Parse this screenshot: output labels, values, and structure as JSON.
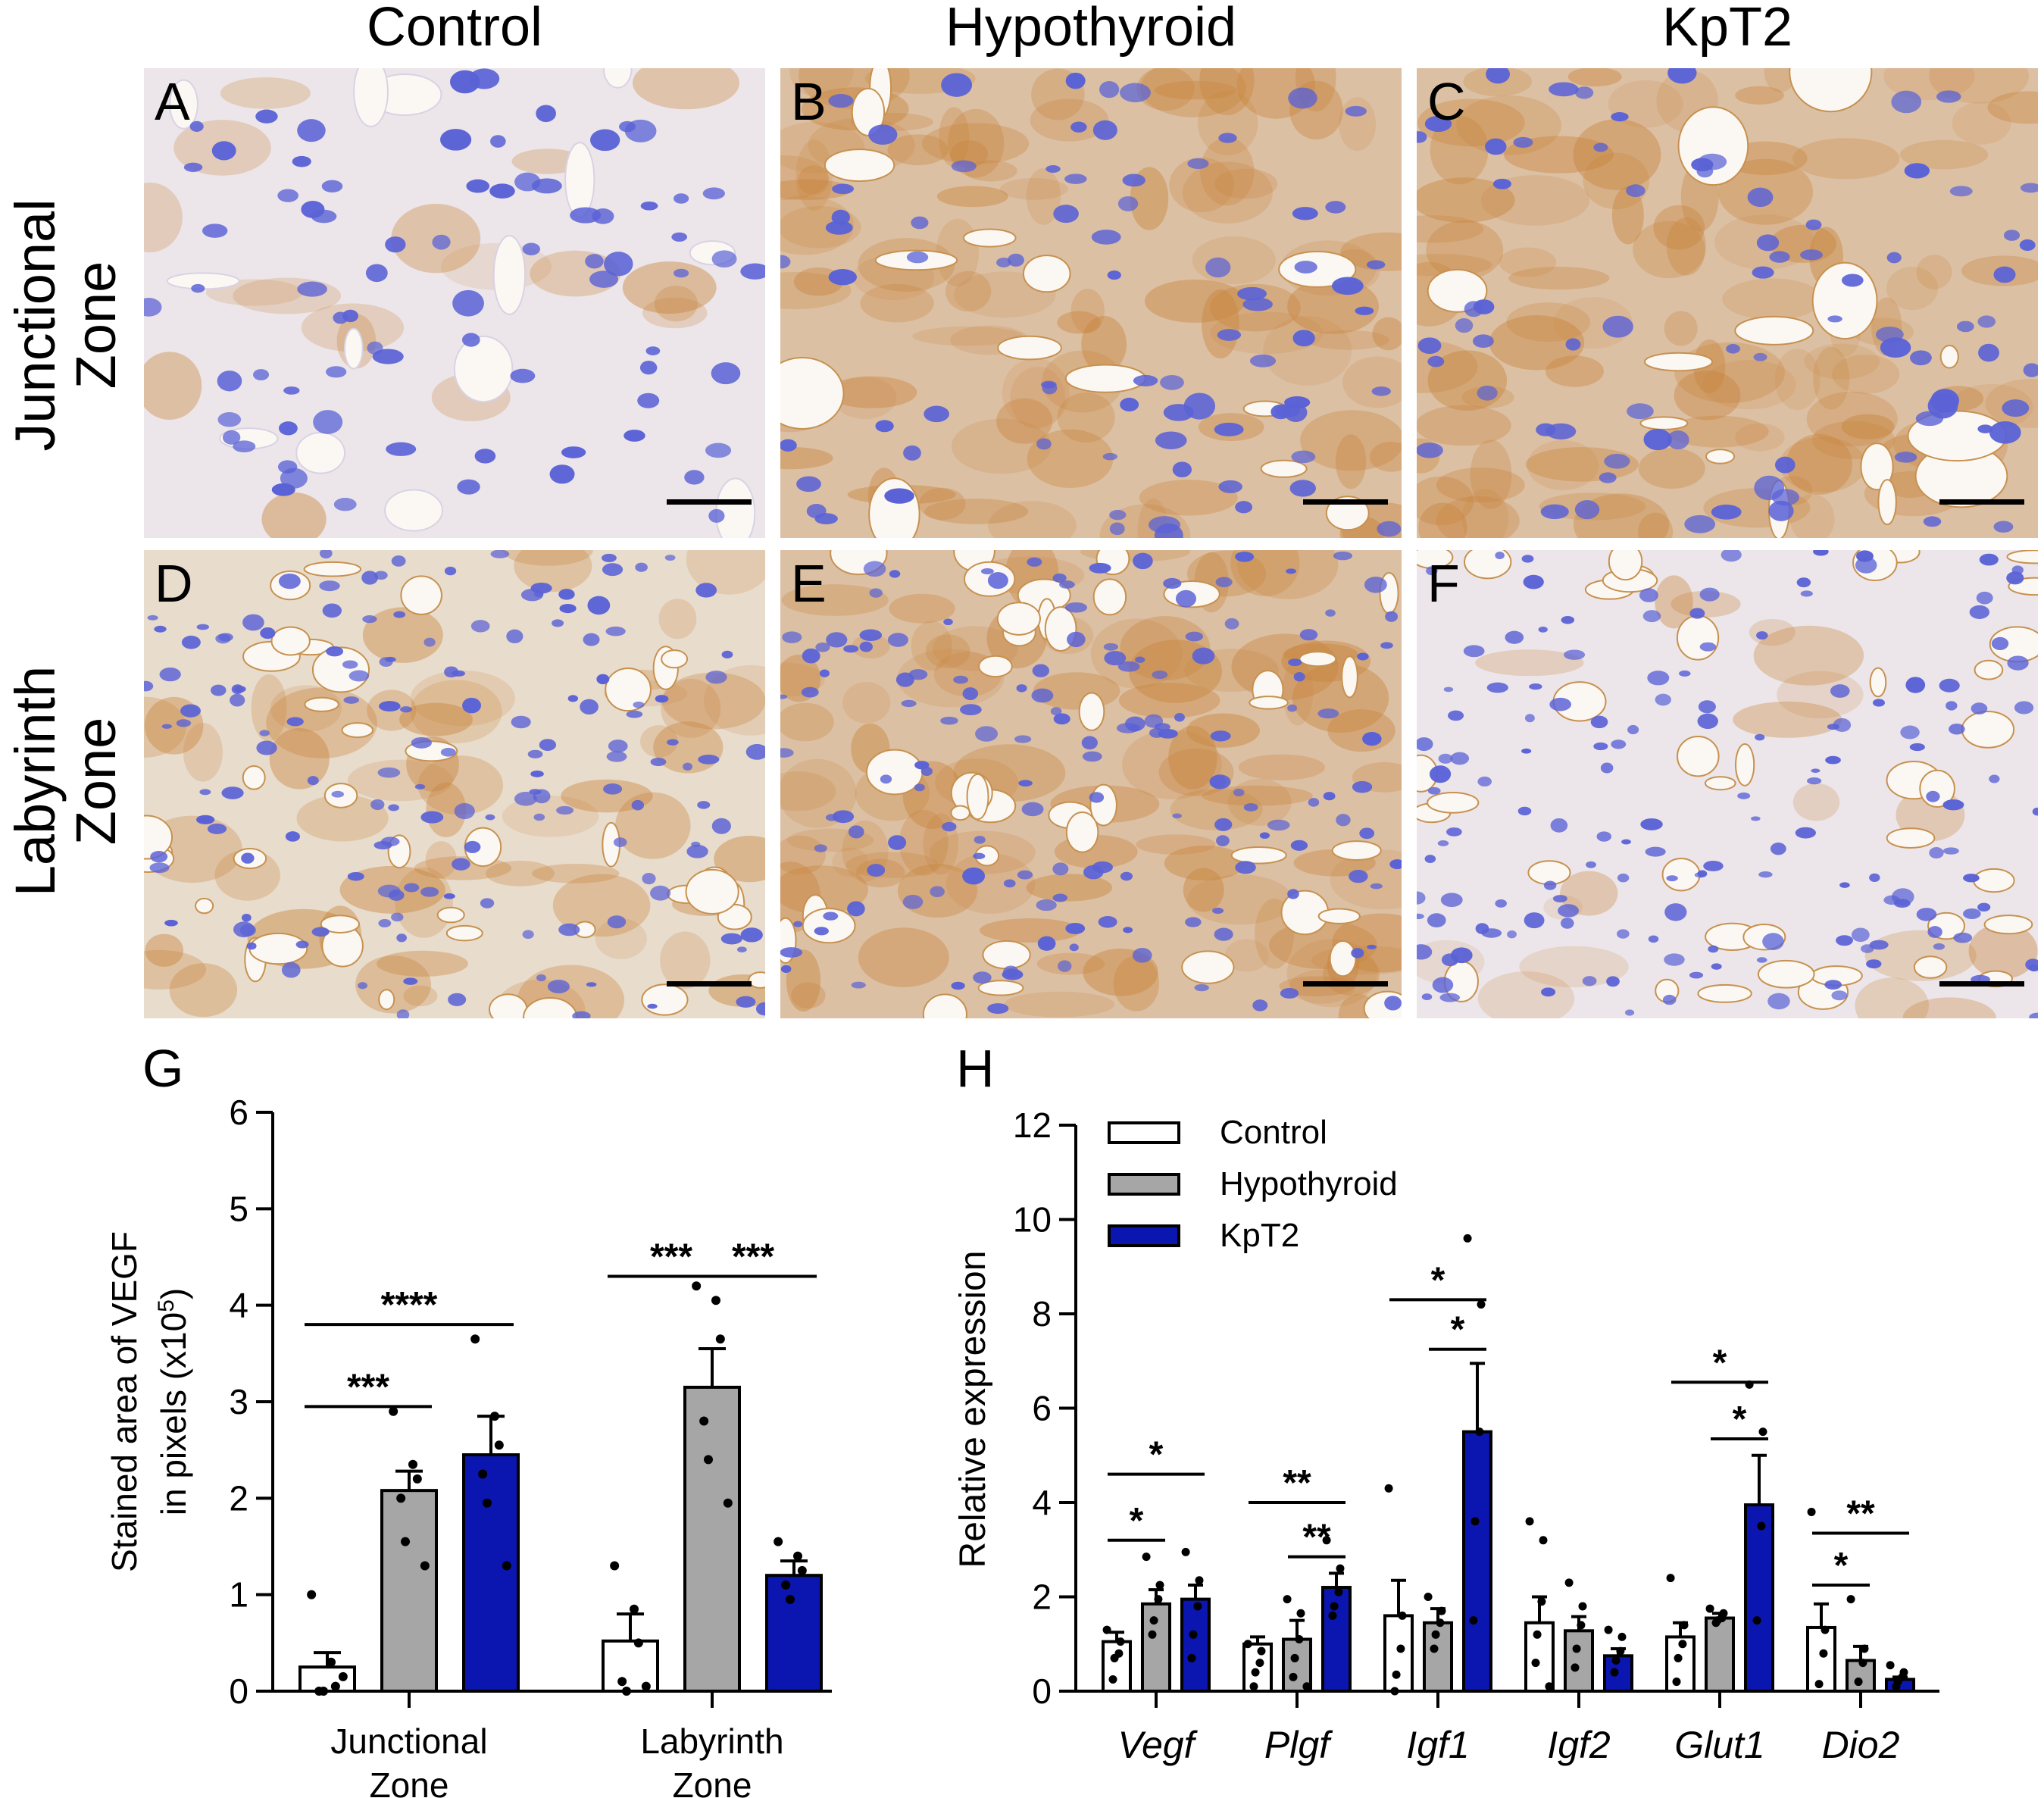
{
  "column_headers": [
    "Control",
    "Hypothyroid",
    "KpT2"
  ],
  "row_headers": [
    "Junctional\nZone",
    "Labyrinth\nZone"
  ],
  "panels": [
    {
      "label": "A",
      "stain": "low"
    },
    {
      "label": "B",
      "stain": "high"
    },
    {
      "label": "C",
      "stain": "high"
    },
    {
      "label": "D",
      "stain": "medium"
    },
    {
      "label": "E",
      "stain": "high"
    },
    {
      "label": "F",
      "stain": "low"
    }
  ],
  "colors": {
    "control": "#ffffff",
    "hypothyroid": "#a6a6a6",
    "kpt2": "#0b16b0",
    "nucleus": "#5a62d6",
    "tissue_light": "#ece6ea",
    "stain_brown": "#c8843c"
  },
  "chart_data": [
    {
      "panel_label": "G",
      "type": "bar",
      "ylabel_line1": "Stained area of VEGF",
      "ylabel_line2": "in pixels (x10",
      "ylabel_sup": "5",
      "ylabel_close": ")",
      "ylim": [
        0,
        6
      ],
      "yticks": [
        "0",
        "1",
        "2",
        "3",
        "4",
        "5",
        "6"
      ],
      "category_lines": [
        [
          "Junctional",
          "Zone"
        ],
        [
          "Labyrinth",
          "Zone"
        ]
      ],
      "series": [
        {
          "key": "control",
          "values": [
            0.25,
            0.52
          ],
          "errors": [
            0.15,
            0.28
          ]
        },
        {
          "key": "hypothyroid",
          "values": [
            2.08,
            3.15
          ],
          "errors": [
            0.2,
            0.4
          ]
        },
        {
          "key": "kpt2",
          "values": [
            2.45,
            1.2
          ],
          "errors": [
            0.4,
            0.15
          ]
        }
      ],
      "points": [
        [
          [
            1.0,
            0.3,
            0.05,
            0.0,
            0.0,
            0.15
          ],
          [
            1.3,
            0.85,
            0.5,
            0.1,
            0.0,
            0.05
          ]
        ],
        [
          [
            2.9,
            2.35,
            2.2,
            2.0,
            1.55,
            1.3
          ],
          [
            4.2,
            4.05,
            3.65,
            2.8,
            2.4,
            1.95
          ]
        ],
        [
          [
            3.65,
            2.85,
            2.55,
            2.25,
            1.95,
            1.3
          ],
          [
            1.55,
            1.4,
            1.25,
            1.1,
            0.95
          ]
        ]
      ],
      "significance": [
        {
          "text": "***",
          "category": 0,
          "from": 0,
          "to": 1,
          "y": 2.95
        },
        {
          "text": "****",
          "category": 0,
          "from": 0,
          "to": 2,
          "y": 3.8
        },
        {
          "text": "***",
          "category": 1,
          "from": 0,
          "to": 1,
          "y": 4.3
        },
        {
          "text": "***",
          "category": 1,
          "from": 1,
          "to": 2,
          "y": 4.3
        }
      ]
    },
    {
      "panel_label": "H",
      "type": "bar",
      "ylabel": "Relative expression",
      "ylim": [
        0,
        12
      ],
      "yticks": [
        "0",
        "2",
        "4",
        "6",
        "8",
        "10",
        "12"
      ],
      "categories": [
        "Vegf",
        "Plgf",
        "Igf1",
        "Igf2",
        "Glut1",
        "Dio2"
      ],
      "legend": [
        "Control",
        "Hypothyroid",
        "KpT2"
      ],
      "series": [
        {
          "key": "control",
          "name": "Control",
          "values": [
            1.05,
            1.0,
            1.6,
            1.45,
            1.15,
            1.35
          ],
          "errors": [
            0.2,
            0.15,
            0.75,
            0.55,
            0.3,
            0.5
          ]
        },
        {
          "key": "hypothyroid",
          "name": "Hypothyroid",
          "values": [
            1.85,
            1.1,
            1.45,
            1.28,
            1.55,
            0.65
          ],
          "errors": [
            0.3,
            0.4,
            0.3,
            0.3,
            0.1,
            0.3
          ]
        },
        {
          "key": "kpt2",
          "name": "KpT2",
          "values": [
            1.95,
            2.2,
            5.5,
            0.75,
            3.95,
            0.25
          ],
          "errors": [
            0.3,
            0.3,
            1.45,
            0.15,
            1.05,
            0.05
          ]
        }
      ],
      "points": [
        [
          [
            1.3,
            1.05,
            0.8,
            0.7,
            0.25
          ],
          [
            1.0,
            0.85,
            0.6,
            0.4,
            0.1
          ],
          [
            4.3,
            1.6,
            0.9,
            0.35,
            0.0
          ],
          [
            3.6,
            3.2,
            1.9,
            1.2,
            0.6,
            0.1
          ],
          [
            2.4,
            1.4,
            1.0,
            0.7,
            0.2
          ],
          [
            3.8,
            1.3,
            0.8,
            0.15
          ]
        ],
        [
          [
            2.85,
            2.25,
            1.95,
            1.5,
            1.2
          ],
          [
            1.95,
            1.65,
            1.1,
            0.7,
            0.3,
            0.1
          ],
          [
            2.0,
            1.7,
            1.45,
            1.2,
            0.9
          ],
          [
            2.3,
            1.8,
            1.4,
            0.9,
            0.5
          ],
          [
            1.75,
            1.65,
            1.55,
            1.5,
            1.45
          ],
          [
            1.95,
            0.9,
            0.6,
            0.2
          ]
        ],
        [
          [
            2.95,
            2.35,
            1.8,
            1.2,
            0.7
          ],
          [
            3.2,
            2.6,
            2.1,
            1.8,
            1.6
          ],
          [
            9.6,
            8.2,
            5.5,
            3.6,
            1.5
          ],
          [
            1.3,
            1.15,
            0.85,
            0.65,
            0.4
          ],
          [
            6.5,
            5.5,
            3.5,
            1.5
          ],
          [
            0.55,
            0.4,
            0.3,
            0.2,
            0.1
          ]
        ]
      ],
      "significance": [
        {
          "text": "*",
          "category": 0,
          "from": 0,
          "to": 1,
          "y": 3.2
        },
        {
          "text": "*",
          "category": 0,
          "from": 0,
          "to": 2,
          "y": 4.6
        },
        {
          "text": "**",
          "category": 1,
          "from": 0,
          "to": 2,
          "y": 4.0
        },
        {
          "text": "**",
          "category": 1,
          "from": 1,
          "to": 2,
          "y": 2.85
        },
        {
          "text": "*",
          "category": 2,
          "from": 0,
          "to": 2,
          "y": 8.3
        },
        {
          "text": "*",
          "category": 2,
          "from": 1,
          "to": 2,
          "y": 7.25
        },
        {
          "text": "*",
          "category": 4,
          "from": 0,
          "to": 2,
          "y": 6.55
        },
        {
          "text": "*",
          "category": 4,
          "from": 1,
          "to": 2,
          "y": 5.35
        },
        {
          "text": "*",
          "category": 5,
          "from": 0,
          "to": 1,
          "y": 2.25
        },
        {
          "text": "**",
          "category": 5,
          "from": 0,
          "to": 2,
          "y": 3.35
        }
      ]
    }
  ]
}
